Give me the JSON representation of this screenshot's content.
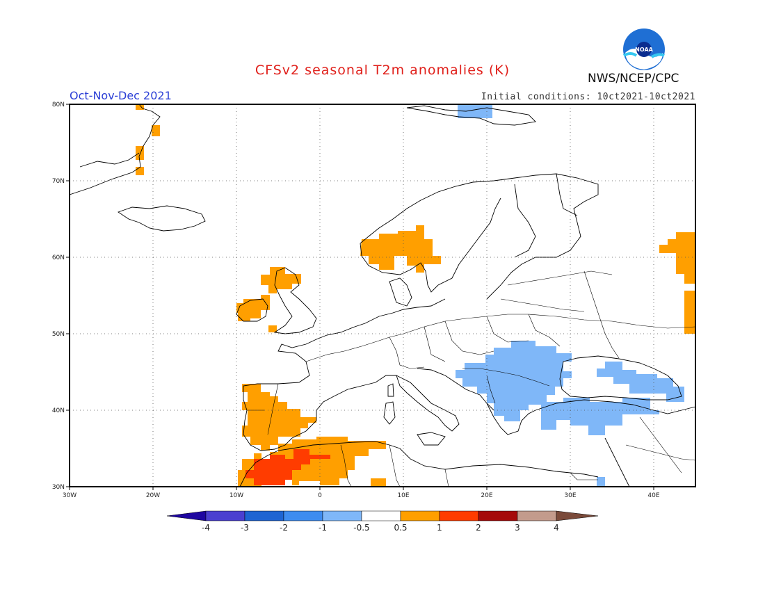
{
  "header": {
    "title": "CFSv2 seasonal T2m anomalies (K)",
    "agency": "NWS/NCEP/CPC",
    "logo_text": "NOAA",
    "period": "Oct-Nov-Dec 2021",
    "initial_conditions": "Initial conditions: 10ct2021-10ct2021"
  },
  "map": {
    "projection": "lat-lon",
    "lon_range": [
      -30,
      45
    ],
    "lat_range": [
      30,
      80
    ],
    "x_ticks": [
      "30W",
      "20W",
      "10W",
      "0",
      "10E",
      "20E",
      "30E",
      "40E"
    ],
    "y_ticks": [
      "30N",
      "40N",
      "50N",
      "60N",
      "70N",
      "80N"
    ],
    "grid": "dotted",
    "regions": [
      {
        "name": "iberia",
        "anomaly_class": "0.5-1",
        "color": "#ff9f00"
      },
      {
        "name": "north-africa",
        "anomaly_class": "0.5-1",
        "color": "#ff9f00"
      },
      {
        "name": "morocco-core",
        "anomaly_class": "1-2",
        "color": "#ff3c00"
      },
      {
        "name": "norway",
        "anomaly_class": "0.5-1",
        "color": "#ff9f00"
      },
      {
        "name": "scotland",
        "anomaly_class": "0.5-1",
        "color": "#ff9f00"
      },
      {
        "name": "ireland",
        "anomaly_class": "0.5-1",
        "color": "#ff9f00"
      },
      {
        "name": "greenland-coast",
        "anomaly_class": "0.5-1",
        "color": "#ff9f00"
      },
      {
        "name": "east-edge",
        "anomaly_class": "0.5-1",
        "color": "#ff9f00"
      },
      {
        "name": "balkans",
        "anomaly_class": "-1--0.5",
        "color": "#7fb7f8"
      },
      {
        "name": "turkey",
        "anomaly_class": "-1--0.5",
        "color": "#7fb7f8"
      },
      {
        "name": "svalbard",
        "anomaly_class": "-1--0.5",
        "color": "#7fb7f8"
      }
    ]
  },
  "colorbar": {
    "labels": [
      "-4",
      "-3",
      "-2",
      "-1",
      "-0.5",
      "0.5",
      "1",
      "2",
      "3",
      "4"
    ],
    "colors": [
      "#1e06a0",
      "#4b3fd0",
      "#1e64d2",
      "#3e8cf0",
      "#7fb7f8",
      "#ffffff",
      "#ff9f00",
      "#ff3c00",
      "#a50a0a",
      "#c39b8c",
      "#7a4a3a"
    ]
  }
}
